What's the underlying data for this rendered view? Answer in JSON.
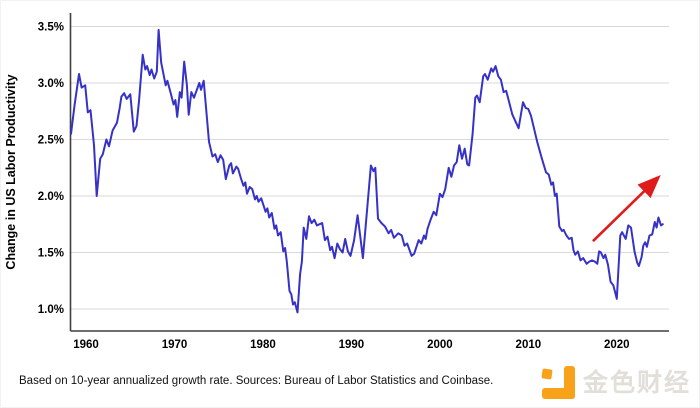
{
  "chart_data": {
    "type": "line",
    "title": "",
    "xlabel": "",
    "ylabel": "Change in US Labor Productivity",
    "x_ticks": [
      1960,
      1970,
      1980,
      1990,
      2000,
      2010,
      2020
    ],
    "y_ticks": [
      {
        "v": 1.0,
        "label": "1.0%"
      },
      {
        "v": 1.5,
        "label": "1.5%"
      },
      {
        "v": 2.0,
        "label": "2.0%"
      },
      {
        "v": 2.5,
        "label": "2.5%"
      },
      {
        "v": 3.0,
        "label": "3.0%"
      },
      {
        "v": 3.5,
        "label": "3.5%"
      }
    ],
    "xlim": [
      1958.3,
      2025.9
    ],
    "ylim": [
      0.805,
      3.62
    ],
    "grid": "horizontal",
    "grid_color": "#d9d9d9",
    "axis_color": "#3f3f3f",
    "series": [
      {
        "name": "10-year annualized change in US labor productivity",
        "color": "#3632c8",
        "points": [
          [
            1958.3,
            2.55
          ],
          [
            1958.7,
            2.8
          ],
          [
            1959.2,
            3.08
          ],
          [
            1959.5,
            2.96
          ],
          [
            1959.9,
            2.98
          ],
          [
            1960.2,
            2.74
          ],
          [
            1960.5,
            2.76
          ],
          [
            1960.9,
            2.45
          ],
          [
            1961.2,
            2.0
          ],
          [
            1961.6,
            2.33
          ],
          [
            1961.9,
            2.37
          ],
          [
            1962.3,
            2.5
          ],
          [
            1962.6,
            2.44
          ],
          [
            1963.0,
            2.58
          ],
          [
            1963.5,
            2.65
          ],
          [
            1963.8,
            2.78
          ],
          [
            1964.0,
            2.88
          ],
          [
            1964.3,
            2.91
          ],
          [
            1964.6,
            2.86
          ],
          [
            1965.0,
            2.9
          ],
          [
            1965.4,
            2.57
          ],
          [
            1965.7,
            2.62
          ],
          [
            1966.0,
            2.85
          ],
          [
            1966.4,
            3.25
          ],
          [
            1966.7,
            3.12
          ],
          [
            1966.9,
            3.15
          ],
          [
            1967.2,
            3.07
          ],
          [
            1967.4,
            3.12
          ],
          [
            1967.7,
            3.04
          ],
          [
            1968.0,
            3.1
          ],
          [
            1968.2,
            3.47
          ],
          [
            1968.5,
            3.18
          ],
          [
            1968.7,
            3.1
          ],
          [
            1969.0,
            2.98
          ],
          [
            1969.2,
            3.02
          ],
          [
            1969.6,
            2.9
          ],
          [
            1969.9,
            2.81
          ],
          [
            1970.1,
            2.85
          ],
          [
            1970.3,
            2.7
          ],
          [
            1970.6,
            2.92
          ],
          [
            1970.8,
            2.87
          ],
          [
            1971.1,
            3.19
          ],
          [
            1971.4,
            2.98
          ],
          [
            1971.6,
            2.72
          ],
          [
            1971.9,
            2.92
          ],
          [
            1972.2,
            2.87
          ],
          [
            1972.8,
            3.0
          ],
          [
            1973.0,
            2.94
          ],
          [
            1973.3,
            3.02
          ],
          [
            1973.9,
            2.48
          ],
          [
            1974.3,
            2.35
          ],
          [
            1974.6,
            2.37
          ],
          [
            1974.9,
            2.3
          ],
          [
            1975.2,
            2.36
          ],
          [
            1975.5,
            2.32
          ],
          [
            1975.8,
            2.15
          ],
          [
            1976.2,
            2.27
          ],
          [
            1976.4,
            2.29
          ],
          [
            1976.6,
            2.2
          ],
          [
            1977.0,
            2.26
          ],
          [
            1977.2,
            2.24
          ],
          [
            1977.5,
            2.16
          ],
          [
            1977.8,
            2.09
          ],
          [
            1978.0,
            2.12
          ],
          [
            1978.2,
            2.02
          ],
          [
            1978.5,
            2.08
          ],
          [
            1978.8,
            2.06
          ],
          [
            1979.1,
            1.97
          ],
          [
            1979.3,
            2.0
          ],
          [
            1979.5,
            1.95
          ],
          [
            1979.8,
            1.98
          ],
          [
            1980.3,
            1.86
          ],
          [
            1980.5,
            1.89
          ],
          [
            1980.7,
            1.81
          ],
          [
            1981.0,
            1.85
          ],
          [
            1981.3,
            1.71
          ],
          [
            1981.5,
            1.74
          ],
          [
            1981.7,
            1.65
          ],
          [
            1982.0,
            1.68
          ],
          [
            1982.3,
            1.51
          ],
          [
            1982.5,
            1.54
          ],
          [
            1982.7,
            1.42
          ],
          [
            1983.0,
            1.16
          ],
          [
            1983.2,
            1.13
          ],
          [
            1983.4,
            1.04
          ],
          [
            1983.6,
            1.06
          ],
          [
            1983.9,
            0.97
          ],
          [
            1984.2,
            1.31
          ],
          [
            1984.4,
            1.42
          ],
          [
            1984.6,
            1.72
          ],
          [
            1984.9,
            1.62
          ],
          [
            1985.2,
            1.82
          ],
          [
            1985.5,
            1.76
          ],
          [
            1985.8,
            1.79
          ],
          [
            1986.1,
            1.74
          ],
          [
            1986.4,
            1.75
          ],
          [
            1986.7,
            1.76
          ],
          [
            1987.0,
            1.61
          ],
          [
            1987.3,
            1.64
          ],
          [
            1987.6,
            1.52
          ],
          [
            1987.8,
            1.55
          ],
          [
            1988.1,
            1.45
          ],
          [
            1988.4,
            1.58
          ],
          [
            1988.7,
            1.53
          ],
          [
            1989.0,
            1.5
          ],
          [
            1989.3,
            1.62
          ],
          [
            1989.6,
            1.51
          ],
          [
            1989.9,
            1.47
          ],
          [
            1990.3,
            1.61
          ],
          [
            1990.7,
            1.83
          ],
          [
            1991.0,
            1.64
          ],
          [
            1991.3,
            1.45
          ],
          [
            1991.8,
            1.9
          ],
          [
            1992.2,
            2.27
          ],
          [
            1992.5,
            2.22
          ],
          [
            1992.7,
            2.25
          ],
          [
            1993.0,
            1.8
          ],
          [
            1993.4,
            1.76
          ],
          [
            1993.8,
            1.73
          ],
          [
            1994.2,
            1.67
          ],
          [
            1994.5,
            1.7
          ],
          [
            1994.8,
            1.63
          ],
          [
            1995.3,
            1.67
          ],
          [
            1995.7,
            1.65
          ],
          [
            1996.0,
            1.56
          ],
          [
            1996.3,
            1.58
          ],
          [
            1996.8,
            1.47
          ],
          [
            1997.1,
            1.49
          ],
          [
            1997.6,
            1.61
          ],
          [
            1997.9,
            1.58
          ],
          [
            1998.2,
            1.65
          ],
          [
            1998.4,
            1.62
          ],
          [
            1998.6,
            1.71
          ],
          [
            1999.0,
            1.8
          ],
          [
            1999.3,
            1.86
          ],
          [
            1999.6,
            1.83
          ],
          [
            2000.0,
            2.02
          ],
          [
            2000.3,
            1.99
          ],
          [
            2000.6,
            2.06
          ],
          [
            2001.0,
            2.25
          ],
          [
            2001.3,
            2.17
          ],
          [
            2001.6,
            2.27
          ],
          [
            2001.9,
            2.3
          ],
          [
            2002.2,
            2.45
          ],
          [
            2002.5,
            2.33
          ],
          [
            2002.8,
            2.42
          ],
          [
            2003.1,
            2.28
          ],
          [
            2003.3,
            2.27
          ],
          [
            2003.7,
            2.55
          ],
          [
            2004.0,
            2.87
          ],
          [
            2004.2,
            2.89
          ],
          [
            2004.5,
            2.83
          ],
          [
            2004.9,
            3.06
          ],
          [
            2005.1,
            3.08
          ],
          [
            2005.4,
            3.03
          ],
          [
            2005.8,
            3.13
          ],
          [
            2006.0,
            3.1
          ],
          [
            2006.3,
            3.15
          ],
          [
            2006.6,
            3.06
          ],
          [
            2006.9,
            3.03
          ],
          [
            2007.2,
            2.92
          ],
          [
            2007.5,
            2.93
          ],
          [
            2007.7,
            2.87
          ],
          [
            2008.2,
            2.72
          ],
          [
            2008.9,
            2.6
          ],
          [
            2009.4,
            2.83
          ],
          [
            2009.7,
            2.78
          ],
          [
            2010.0,
            2.77
          ],
          [
            2010.3,
            2.71
          ],
          [
            2011.0,
            2.48
          ],
          [
            2011.5,
            2.34
          ],
          [
            2012.0,
            2.21
          ],
          [
            2012.3,
            2.19
          ],
          [
            2012.6,
            2.1
          ],
          [
            2012.8,
            2.12
          ],
          [
            2013.0,
            2.0
          ],
          [
            2013.2,
            2.02
          ],
          [
            2013.5,
            1.73
          ],
          [
            2013.8,
            1.69
          ],
          [
            2014.0,
            1.7
          ],
          [
            2014.3,
            1.65
          ],
          [
            2014.6,
            1.62
          ],
          [
            2014.9,
            1.63
          ],
          [
            2015.1,
            1.52
          ],
          [
            2015.3,
            1.48
          ],
          [
            2015.6,
            1.51
          ],
          [
            2015.9,
            1.43
          ],
          [
            2016.2,
            1.45
          ],
          [
            2016.6,
            1.4
          ],
          [
            2016.9,
            1.42
          ],
          [
            2017.2,
            1.43
          ],
          [
            2017.5,
            1.42
          ],
          [
            2017.8,
            1.4
          ],
          [
            2018.0,
            1.51
          ],
          [
            2018.2,
            1.5
          ],
          [
            2018.5,
            1.45
          ],
          [
            2018.7,
            1.48
          ],
          [
            2019.0,
            1.39
          ],
          [
            2019.3,
            1.24
          ],
          [
            2019.6,
            1.21
          ],
          [
            2020.0,
            1.09
          ],
          [
            2020.4,
            1.65
          ],
          [
            2020.6,
            1.68
          ],
          [
            2021.0,
            1.62
          ],
          [
            2021.3,
            1.74
          ],
          [
            2021.6,
            1.72
          ],
          [
            2022.0,
            1.51
          ],
          [
            2022.3,
            1.41
          ],
          [
            2022.5,
            1.38
          ],
          [
            2022.8,
            1.46
          ],
          [
            2023.0,
            1.56
          ],
          [
            2023.2,
            1.59
          ],
          [
            2023.4,
            1.55
          ],
          [
            2023.7,
            1.65
          ],
          [
            2024.0,
            1.66
          ],
          [
            2024.3,
            1.77
          ],
          [
            2024.5,
            1.72
          ],
          [
            2024.7,
            1.81
          ],
          [
            2025.0,
            1.74
          ],
          [
            2025.2,
            1.75
          ]
        ]
      }
    ],
    "annotation_arrow": {
      "x1": 2017.3,
      "y1": 1.6,
      "x2": 2025.0,
      "y2": 2.18,
      "color": "#e01b1b"
    }
  },
  "footer": {
    "note": "Based on 10-year annualized growth rate. Sources: Bureau of Labor Statistics and Coinbase."
  },
  "watermark": {
    "text": "金色财经",
    "icon_color": "#f8a21a",
    "text_color": "#e2dfd9"
  }
}
